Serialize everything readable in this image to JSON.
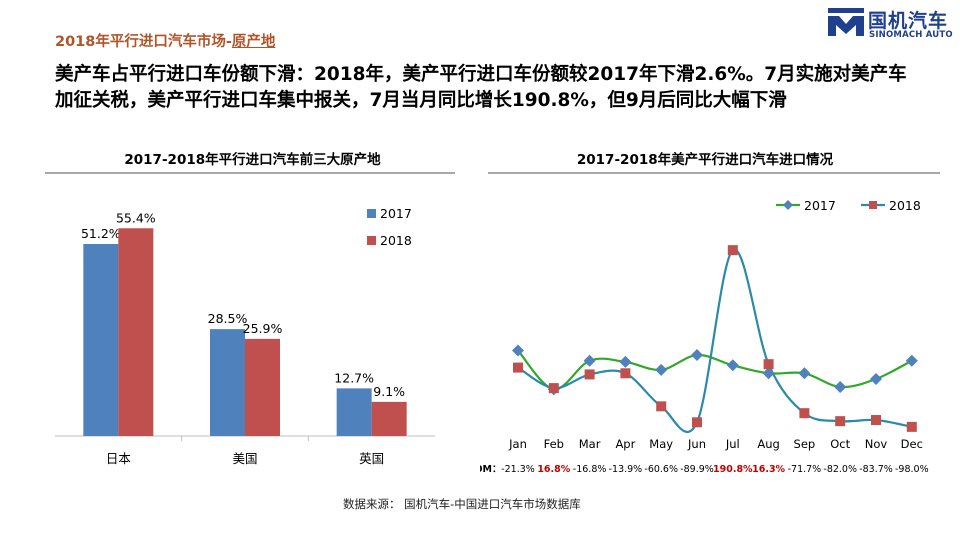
{
  "header": {
    "section_prefix": "2018年平行进口汽车市场-",
    "section_suffix": "原产地",
    "logo_cn": "国机汽车",
    "logo_en": "SINOMACH AUTO"
  },
  "headline": "美产车占平行进口车份额下滑：2018年，美产平行进口车份额较2017年下滑2.6%。7月实施对美产车加征关税，美产平行进口车集中报关，7月当月同比增长190.8%，但9月后同比大幅下滑",
  "source": "数据来源： 国机汽车-中国进口汽车市场数据库",
  "colors": {
    "bar_2017": "#4f81bd",
    "bar_2018": "#c0504d",
    "line_2017": "#30a82a",
    "line_2018": "#2a8aa8",
    "marker_2017": "#4f81bd",
    "marker_2018": "#c0504d",
    "mom_highlight": "#c00000",
    "section_title": "#b0552a",
    "logo": "#1f3f8f"
  },
  "chart_data": [
    {
      "type": "bar",
      "title": "2017-2018年平行进口汽车前三大原产地",
      "categories": [
        "日本",
        "美国",
        "英国"
      ],
      "series": [
        {
          "name": "2017",
          "values": [
            51.2,
            28.5,
            12.7
          ],
          "labels": [
            "51.2%",
            "28.5%",
            "12.7%"
          ]
        },
        {
          "name": "2018",
          "values": [
            55.4,
            25.9,
            9.1
          ],
          "labels": [
            "55.4%",
            "25.9%",
            "9.1%"
          ]
        }
      ],
      "ylim": [
        0,
        60
      ],
      "legend": "right",
      "grid": false
    },
    {
      "type": "line",
      "title": "2017-2018年美产平行进口汽车进口情况",
      "categories": [
        "Jan",
        "Feb",
        "Mar",
        "Apr",
        "May",
        "Jun",
        "Jul",
        "Aug",
        "Sep",
        "Oct",
        "Nov",
        "Dec"
      ],
      "series": [
        {
          "name": "2017",
          "values": [
            6.8,
            3.4,
            5.9,
            5.8,
            5.1,
            6.4,
            5.5,
            4.8,
            4.8,
            3.6,
            4.3,
            5.9
          ]
        },
        {
          "name": "2018",
          "values": [
            5.3,
            3.5,
            4.7,
            4.8,
            1.9,
            0.5,
            15.6,
            5.6,
            1.3,
            0.6,
            0.7,
            0.1
          ]
        }
      ],
      "y_unit": "relative volume (unlabeled axis)",
      "legend": "top",
      "grid": false,
      "mom_label": "MOM：",
      "mom": [
        "-21.3%",
        "16.8%",
        "-16.8%",
        "-13.9%",
        "-60.6%",
        "-89.9%",
        "190.8%",
        "16.3%",
        "-71.7%",
        "-82.0%",
        "-83.7%",
        "-98.0%"
      ],
      "mom_highlight": [
        false,
        true,
        false,
        false,
        false,
        false,
        true,
        true,
        false,
        false,
        false,
        false
      ]
    }
  ]
}
